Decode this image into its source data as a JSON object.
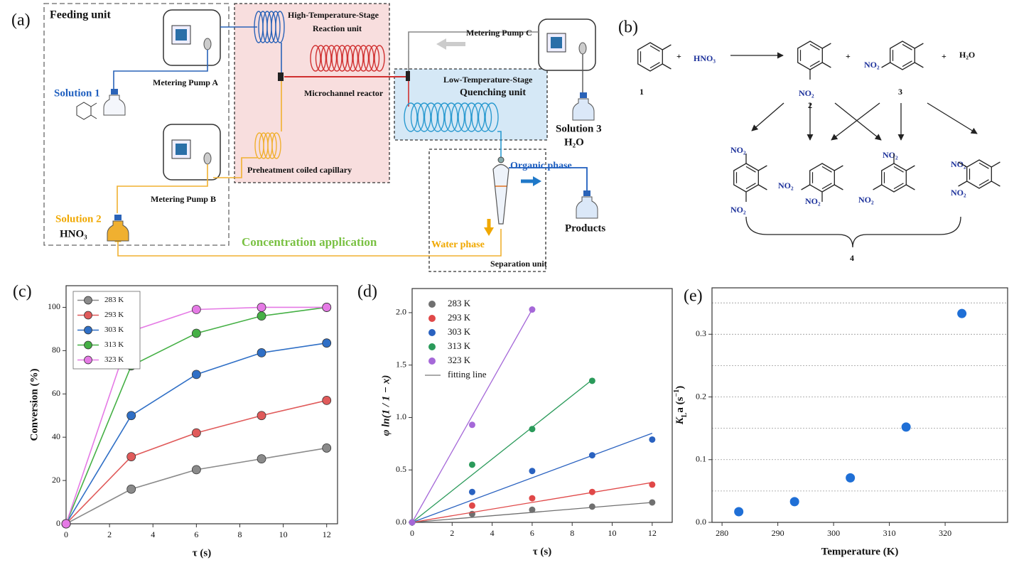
{
  "panel_labels": [
    "(a)",
    "(b)",
    "(c)",
    "(d)",
    "(e)"
  ],
  "diagram": {
    "feeding_unit": "Feeding unit",
    "high_temp_1": "High-Temperature-Stage",
    "high_temp_2": "Reaction unit",
    "pump_a": "Metering Pump A",
    "pump_b": "Metering Pump B",
    "pump_c": "Metering Pump C",
    "reactor": "Microchannel reactor",
    "solution_1": "Solution 1",
    "solution_2": "Solution 2",
    "hno3": "HNO₃",
    "solution_3": "Solution 3",
    "h2o": "H₂O",
    "low_temp_1": "Low-Temperature-Stage",
    "low_temp_2": "Quenching unit",
    "preheat": "Preheatment coiled capillary",
    "organic": "Organic phase",
    "products": "Products",
    "concentration": "Concentration application",
    "water": "Water phase",
    "separation": "Separation unit"
  },
  "scheme": {
    "compound_1": "1",
    "plus": "+",
    "reagent": "HNO₃",
    "compound_2": "2",
    "compound_3": "3",
    "water": "H₂O",
    "nitro": "NO₂",
    "compound_4": "4"
  },
  "chart_data": [
    {
      "type": "line",
      "xlabel": "τ (s)",
      "ylabel": "Conversion (%)",
      "x": [
        0,
        3,
        6,
        9,
        12
      ],
      "xlim": [
        0,
        12.5
      ],
      "xticks": [
        0,
        2,
        4,
        6,
        8,
        10,
        12
      ],
      "ylim": [
        0,
        110
      ],
      "yticks": [
        0,
        20,
        40,
        60,
        80,
        100
      ],
      "legend": "upper left",
      "legend_frame": true,
      "series": [
        {
          "name": "283 K",
          "color": "#8a8a8a",
          "values": [
            0,
            16,
            25,
            30,
            35
          ]
        },
        {
          "name": "293 K",
          "color": "#e05a5a",
          "values": [
            0,
            31,
            42,
            50,
            57
          ]
        },
        {
          "name": "303 K",
          "color": "#2f6fc6",
          "values": [
            0,
            50,
            69,
            79,
            83.5
          ]
        },
        {
          "name": "313 K",
          "color": "#45b045",
          "values": [
            0,
            73,
            88,
            96,
            100
          ]
        },
        {
          "name": "323 K",
          "color": "#e57ae5",
          "values": [
            0,
            89,
            99,
            100,
            100
          ]
        }
      ]
    },
    {
      "type": "scatter",
      "xlabel": "τ (s)",
      "ylabel": "φ ln(1 / 1 − x)",
      "xlim": [
        0,
        13
      ],
      "xticks": [
        0,
        2,
        4,
        6,
        8,
        10,
        12
      ],
      "ylim": [
        0,
        2.23
      ],
      "yticks": [
        {
          "value": 0,
          "label": "0.0"
        },
        0.5,
        {
          "value": 1,
          "label": "1.0"
        },
        1.5,
        {
          "value": 2,
          "label": "2.0"
        }
      ],
      "legend": "upper left",
      "legend_frame": false,
      "fit_label": "fitting line",
      "fit_color": "#777777",
      "series": [
        {
          "name": "283 K",
          "color": "#707070",
          "x": [
            0,
            3,
            6,
            9,
            12
          ],
          "values": [
            0,
            0.08,
            0.12,
            0.15,
            0.19
          ],
          "fit": {
            "x": [
              0,
              12
            ],
            "values": [
              0,
              0.19
            ]
          }
        },
        {
          "name": "293 K",
          "color": "#e04848",
          "x": [
            0,
            3,
            6,
            9,
            12
          ],
          "values": [
            0,
            0.16,
            0.23,
            0.29,
            0.36
          ],
          "fit": {
            "x": [
              0,
              12
            ],
            "values": [
              0,
              0.38
            ]
          }
        },
        {
          "name": "303 K",
          "color": "#2a62c0",
          "x": [
            0,
            3,
            6,
            9,
            12
          ],
          "values": [
            0,
            0.29,
            0.49,
            0.64,
            0.79
          ],
          "fit": {
            "x": [
              0,
              12
            ],
            "values": [
              0,
              0.85
            ]
          }
        },
        {
          "name": "313 K",
          "color": "#2a9a5a",
          "x": [
            0,
            3,
            6,
            9
          ],
          "values": [
            0,
            0.55,
            0.89,
            1.35
          ],
          "fit": {
            "x": [
              0,
              9
            ],
            "values": [
              0,
              1.36
            ]
          }
        },
        {
          "name": "323 K",
          "color": "#a568d8",
          "x": [
            0,
            3,
            6
          ],
          "values": [
            0,
            0.93,
            2.03
          ],
          "fit": {
            "x": [
              0,
              6
            ],
            "values": [
              0,
              2.03
            ]
          }
        }
      ]
    },
    {
      "type": "scatter",
      "xlabel": "Temperature (K)",
      "ylabel_parts": [
        "K",
        "L",
        "a (s",
        "−1",
        ")"
      ],
      "xlim": [
        278.2,
        331.2
      ],
      "xticks": [
        280,
        290,
        300,
        310,
        320
      ],
      "ylim": [
        0,
        0.374
      ],
      "yticks": [
        {
          "value": 0,
          "label": "0.0"
        },
        0.1,
        0.2,
        0.3
      ],
      "grid": true,
      "grid_yticks": [
        0.05,
        0.1,
        0.15,
        0.2,
        0.25,
        0.3,
        0.35
      ],
      "series": [
        {
          "color": "#1f6fd6",
          "x": [
            283,
            293,
            303,
            313,
            323
          ],
          "values": [
            0.017,
            0.033,
            0.071,
            0.152,
            0.333
          ]
        }
      ]
    }
  ]
}
